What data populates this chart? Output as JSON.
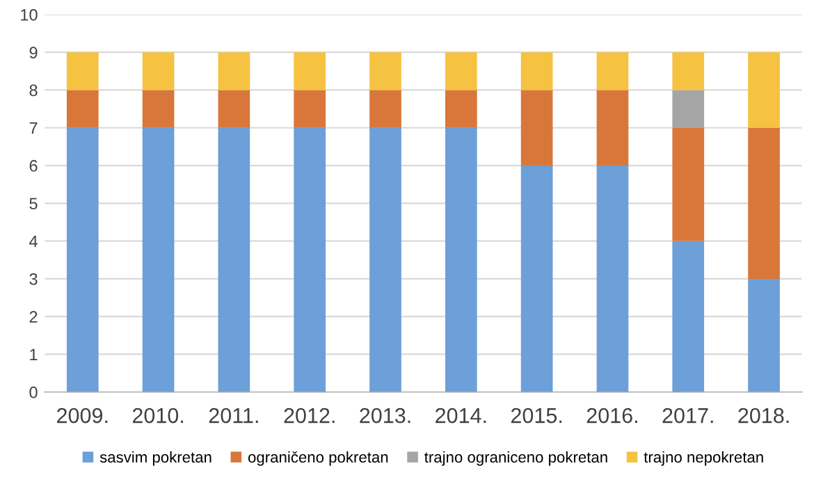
{
  "chart_data": {
    "type": "bar",
    "stacked": true,
    "categories": [
      "2009.",
      "2010.",
      "2011.",
      "2012.",
      "2013.",
      "2014.",
      "2015.",
      "2016.",
      "2017.",
      "2018."
    ],
    "series": [
      {
        "name": "sasvim pokretan",
        "color": "#6d9fd8",
        "values": [
          7,
          7,
          7,
          7,
          7,
          7,
          6,
          6,
          4,
          3
        ]
      },
      {
        "name": "ograničeno pokretan",
        "color": "#d9773a",
        "values": [
          1,
          1,
          1,
          1,
          1,
          1,
          2,
          2,
          3,
          4
        ]
      },
      {
        "name": "trajno ograniceno pokretan",
        "color": "#a5a5a5",
        "values": [
          0,
          0,
          0,
          0,
          0,
          0,
          0,
          0,
          1,
          0
        ]
      },
      {
        "name": "trajno nepokretan",
        "color": "#f5c242",
        "values": [
          1,
          1,
          1,
          1,
          1,
          1,
          1,
          1,
          1,
          2
        ]
      }
    ],
    "ylim": [
      0,
      10
    ],
    "yticks": [
      0,
      1,
      2,
      3,
      4,
      5,
      6,
      7,
      8,
      9,
      10
    ],
    "grid": "y",
    "legend": "bottom"
  }
}
